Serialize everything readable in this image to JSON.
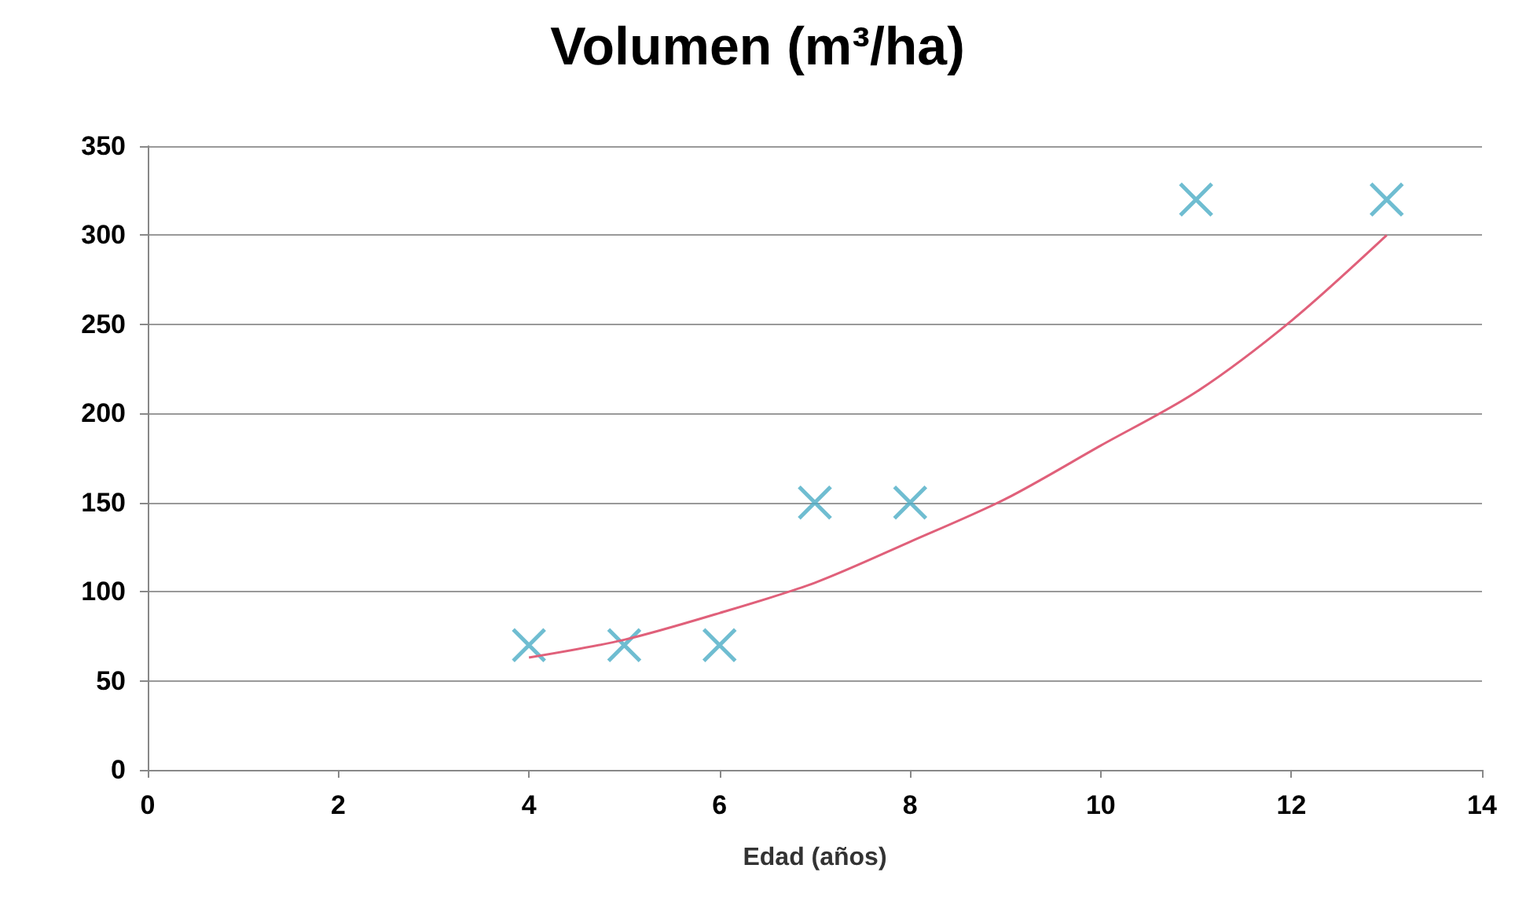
{
  "chart_data": {
    "type": "scatter",
    "title": "Volumen (m³/ha)",
    "xlabel": "Edad (años)",
    "xlim": [
      0,
      14
    ],
    "xticks": [
      0,
      2,
      4,
      6,
      8,
      10,
      12,
      14
    ],
    "ylim": [
      0,
      350
    ],
    "yticks": [
      0,
      50,
      100,
      150,
      200,
      250,
      300,
      350
    ],
    "grid": "y",
    "marker": "cross",
    "series": [
      {
        "color": "#4bacc6",
        "x": [
          4,
          5,
          6,
          7,
          8,
          11,
          13
        ],
        "values": [
          70,
          70,
          70,
          150,
          150,
          320,
          320
        ]
      },
      {
        "type": "line",
        "color": "#e0607a",
        "marker": "none",
        "line_style": "solid",
        "x": [
          4,
          5,
          6,
          7,
          8,
          9,
          10,
          11,
          12,
          13
        ],
        "values": [
          63,
          73,
          88,
          105,
          128,
          152,
          182,
          212,
          252,
          300
        ]
      }
    ]
  }
}
